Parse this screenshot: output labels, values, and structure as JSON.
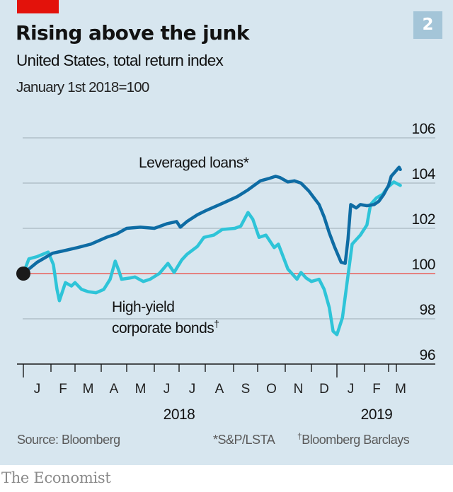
{
  "header": {
    "title": "Rising above the junk",
    "subtitle": "United States, total return index",
    "unit_note": "January 1st 2018=100",
    "chart_number": "2"
  },
  "footer": {
    "source": "Source: Bloomberg",
    "note_loans": "*S&P/LSTA",
    "note_bonds_mark": "†",
    "note_bonds": "Bloomberg Barclays"
  },
  "brand": "The Economist",
  "colors": {
    "loans": "#0e6ca4",
    "bonds": "#2ec4d8",
    "baseline": "#e8605c",
    "grid": "#a9b8c1",
    "panel": "#d7e6ef",
    "accent_red": "#e3120b",
    "badge": "#a4c5d8"
  },
  "chart_data": {
    "type": "line",
    "title": "Rising above the junk",
    "subtitle": "United States, total return index",
    "ylabel": "January 1st 2018=100",
    "xlabel": "",
    "ylim": [
      96,
      106
    ],
    "yticks": [
      106,
      104,
      102,
      100,
      98,
      96
    ],
    "baseline": 100,
    "grid": true,
    "x_unit": "months since January 1st 2018",
    "xlim": [
      0,
      15
    ],
    "month_labels": [
      "J",
      "F",
      "M",
      "A",
      "M",
      "J",
      "J",
      "A",
      "S",
      "O",
      "N",
      "D",
      "J",
      "F",
      "M"
    ],
    "year_labels": [
      {
        "label": "2018",
        "at": 6.0
      },
      {
        "label": "2019",
        "at": 13.5
      }
    ],
    "start_marker": {
      "x": 0,
      "y": 100
    },
    "series": [
      {
        "name": "Leveraged loans*",
        "label": "Leveraged loans*",
        "x": [
          0,
          0.5,
          1.07,
          1.5,
          2.1,
          2.6,
          3.2,
          3.6,
          4.0,
          4.5,
          5.0,
          5.5,
          5.9,
          6.05,
          6.3,
          6.7,
          7.05,
          7.6,
          8.15,
          8.6,
          9.1,
          9.4,
          9.65,
          9.8,
          10.1,
          10.35,
          10.6,
          10.9,
          11.3,
          11.5,
          11.7,
          11.9,
          12.15,
          12.3,
          12.4,
          12.5,
          12.7,
          12.85,
          13.1,
          13.4,
          13.6,
          13.8,
          14.0,
          14.1,
          14.25,
          14.4,
          14.45
        ],
        "y": [
          100.0,
          100.5,
          100.9,
          101.0,
          101.15,
          101.3,
          101.6,
          101.75,
          102.0,
          102.05,
          102.0,
          102.2,
          102.3,
          102.05,
          102.3,
          102.6,
          102.8,
          103.1,
          103.4,
          103.7,
          104.1,
          104.2,
          104.3,
          104.25,
          104.05,
          104.1,
          104.0,
          103.65,
          103.05,
          102.5,
          101.8,
          101.2,
          100.5,
          100.45,
          101.5,
          103.05,
          102.9,
          103.05,
          103.0,
          103.05,
          103.2,
          103.5,
          103.9,
          104.3,
          104.5,
          104.7,
          104.6
        ]
      },
      {
        "name": "High-yield corporate bonds†",
        "label_line1": "High-yield",
        "label_line2": "corporate bonds",
        "label_mark": "†",
        "x": [
          0,
          0.2,
          0.5,
          0.9,
          1.1,
          1.25,
          1.35,
          1.6,
          1.85,
          2.0,
          2.25,
          2.5,
          2.8,
          3.1,
          3.35,
          3.55,
          3.7,
          3.8,
          4.1,
          4.3,
          4.6,
          4.85,
          5.2,
          5.55,
          5.8,
          6.1,
          6.3,
          6.7,
          6.95,
          7.3,
          7.6,
          8.05,
          8.3,
          8.6,
          8.8,
          9.05,
          9.3,
          9.6,
          9.75,
          10.1,
          10.45,
          10.6,
          10.8,
          11.0,
          11.3,
          11.5,
          11.7,
          11.85,
          12.0,
          12.2,
          12.4,
          12.55,
          12.85,
          13.1,
          13.25,
          13.5,
          13.75,
          13.95,
          14.2,
          14.45
        ],
        "y": [
          100.0,
          100.65,
          100.75,
          100.95,
          100.4,
          99.3,
          98.8,
          99.6,
          99.45,
          99.6,
          99.3,
          99.2,
          99.15,
          99.3,
          99.75,
          100.55,
          100.1,
          99.75,
          99.8,
          99.85,
          99.65,
          99.75,
          100.0,
          100.45,
          100.05,
          100.6,
          100.85,
          101.2,
          101.6,
          101.7,
          101.95,
          102.0,
          102.1,
          102.7,
          102.4,
          101.6,
          101.7,
          101.15,
          101.3,
          100.2,
          99.75,
          100.05,
          99.8,
          99.65,
          99.75,
          99.3,
          98.5,
          97.45,
          97.3,
          98.05,
          99.9,
          101.3,
          101.7,
          102.15,
          103.05,
          103.35,
          103.5,
          103.8,
          104.05,
          103.9
        ]
      }
    ]
  }
}
